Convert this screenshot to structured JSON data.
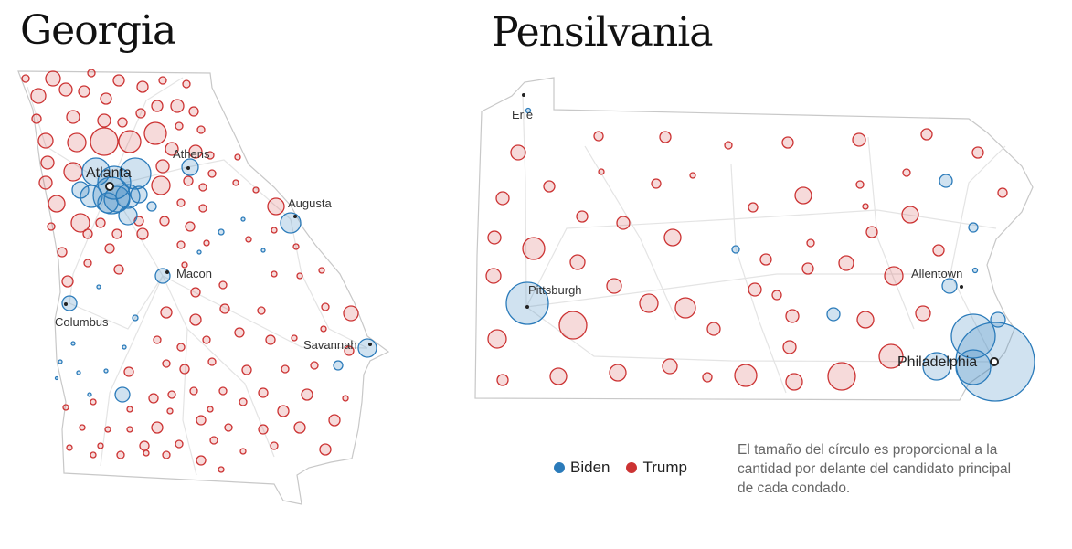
{
  "georgia": {
    "title": "Georgia",
    "cities": {
      "atlanta": "Atlanta",
      "athens": "Athens",
      "augusta": "Augusta",
      "macon": "Macon",
      "columbus": "Columbus",
      "savannah": "Savannah"
    }
  },
  "pennsylvania": {
    "title": "Pensilvania",
    "cities": {
      "erie": "Erie",
      "pittsburgh": "Pittsburgh",
      "allentown": "Allentown",
      "philadelphia": "Philadelphia"
    }
  },
  "legend": {
    "biden_label": "Biden",
    "trump_label": "Trump",
    "biden_color": "#2b7bba",
    "trump_color": "#cc3333"
  },
  "note": "El tamaño del círculo es proporcional a la cantidad por delante del candidato principal de cada condado."
}
